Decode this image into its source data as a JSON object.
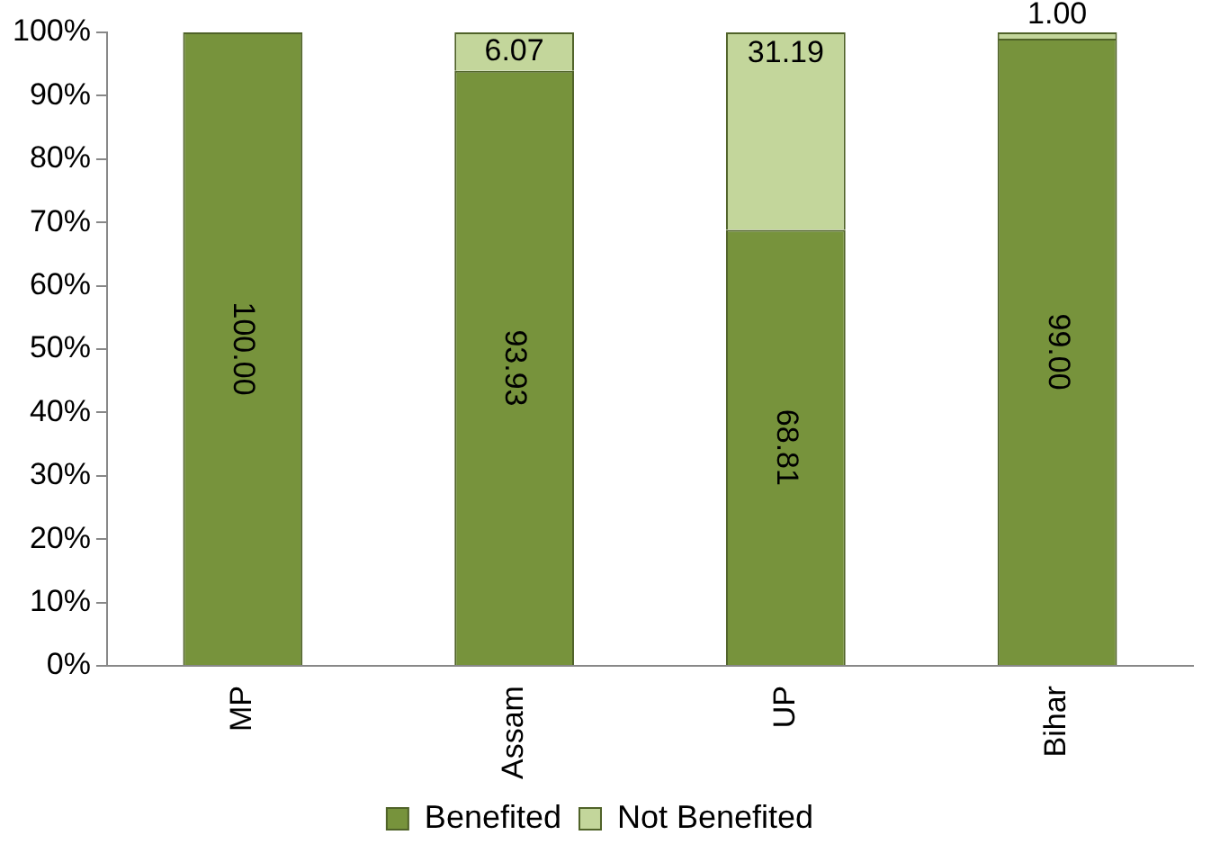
{
  "chart_data": {
    "type": "bar",
    "stacked": true,
    "categories": [
      "MP",
      "Assam",
      "UP",
      "Bihar"
    ],
    "series": [
      {
        "name": "Benefited",
        "color": "#77933c",
        "values": [
          100.0,
          93.93,
          68.81,
          99.0
        ],
        "value_labels": [
          "100.00",
          "93.93",
          "68.81",
          "99.00"
        ]
      },
      {
        "name": "Not Benefited",
        "color": "#c3d69b",
        "values": [
          null,
          6.07,
          31.19,
          1.0
        ],
        "value_labels": [
          null,
          "6.07",
          "31.19",
          "1.00"
        ]
      }
    ],
    "ylim": [
      0,
      100
    ],
    "yticks": [
      {
        "value": 0,
        "label": "0%"
      },
      {
        "value": 10,
        "label": "10%"
      },
      {
        "value": 20,
        "label": "20%"
      },
      {
        "value": 30,
        "label": "30%"
      },
      {
        "value": 40,
        "label": "40%"
      },
      {
        "value": 50,
        "label": "50%"
      },
      {
        "value": 60,
        "label": "60%"
      },
      {
        "value": 70,
        "label": "70%"
      },
      {
        "value": 80,
        "label": "80%"
      },
      {
        "value": 90,
        "label": "90%"
      },
      {
        "value": 100,
        "label": "100%"
      }
    ],
    "grid": false,
    "legend": "bottom"
  }
}
